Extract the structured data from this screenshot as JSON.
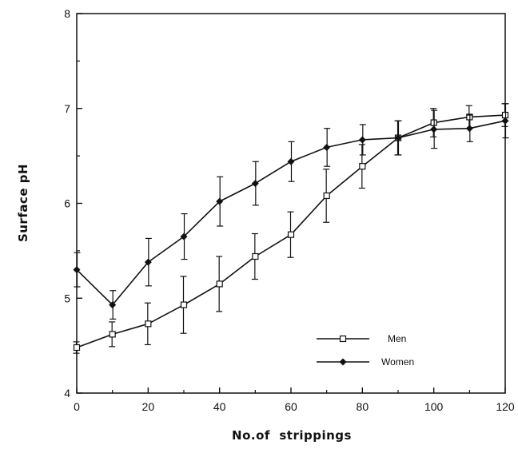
{
  "chart_data": {
    "type": "line",
    "title": "",
    "xlabel": "No.of  strippings",
    "ylabel": "Surface pH",
    "xlim": [
      0,
      120
    ],
    "ylim": [
      4,
      8
    ],
    "x_ticks": [
      0,
      20,
      40,
      60,
      80,
      100,
      120
    ],
    "y_ticks": [
      4,
      5,
      6,
      7,
      8
    ],
    "grid": false,
    "legend_position": "lower-right",
    "x": [
      0,
      10,
      20,
      30,
      40,
      50,
      60,
      70,
      80,
      90,
      100,
      110,
      120
    ],
    "series": [
      {
        "name": "Men",
        "marker": "open-square",
        "color": "#111111",
        "values": [
          4.48,
          4.62,
          4.73,
          4.93,
          5.15,
          5.44,
          5.67,
          6.08,
          6.39,
          6.69,
          6.85,
          6.91,
          6.93
        ],
        "error": [
          0.06,
          0.13,
          0.22,
          0.3,
          0.29,
          0.24,
          0.24,
          0.28,
          0.23,
          0.18,
          0.15,
          0.12,
          0.12
        ]
      },
      {
        "name": "Women",
        "marker": "filled-diamond",
        "color": "#111111",
        "values": [
          5.3,
          4.93,
          5.38,
          5.65,
          6.02,
          6.21,
          6.44,
          6.59,
          6.67,
          6.69,
          6.78,
          6.79,
          6.87
        ],
        "error": [
          0.18,
          0.15,
          0.25,
          0.24,
          0.26,
          0.23,
          0.21,
          0.2,
          0.16,
          0.18,
          0.2,
          0.14,
          0.18
        ]
      }
    ]
  }
}
